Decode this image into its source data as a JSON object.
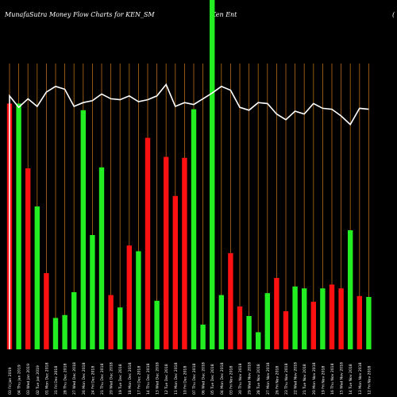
{
  "header": {
    "title_left": "MunafaSutra  Money Flow  Charts for KEN_SM",
    "title_right": "Ken  Ent",
    "title_edge": "("
  },
  "colors": {
    "background": "#000000",
    "grid": "#b86a1a",
    "up": "#22ee22",
    "down": "#ff1111",
    "line": "#ffffff"
  },
  "chart_data": {
    "type": "bar",
    "title": "MunafaSutra  Money Flow  Charts for KEN_SM",
    "categories": [
      "03 Fri Jan 2019",
      "04 Thu Jan 2019",
      "03 Wed Jan 2019",
      "02 Tue Jan 2019",
      "01 Mon Dec 2018",
      "31 Fri Dec 2018",
      "28 Thu Dec 2018",
      "27 Wed Dec 2018",
      "26 Mon Dec 2018",
      "24 Fri Dec 2018",
      "21 Thu Dec 2018",
      "20 Wed Dec 2018",
      "19 Tue Dec 2018",
      "18 Mon Dec 2018",
      "17 Fri Dec 2018",
      "14 Thu Dec 2018",
      "13 Wed Dec 2018",
      "12 Tue Dec 2018",
      "11 Mon Dec 2018",
      "10 Fri Dec 2018",
      "07 Thu Dec 2018",
      "06 Wed Dec 2018",
      "05 Tue Dec 2018",
      "04 Mon Dec 2018",
      "03 Fri Nov 2018",
      "30 Thu Nov 2018",
      "29 Wed Nov 2018",
      "28 Tue Nov 2018",
      "27 Mon Nov 2018",
      "26 Fri Nov 2018",
      "23 Thu Nov 2018",
      "22 Wed Nov 2018",
      "21 Tue Nov 2018",
      "20 Mon Nov 2018",
      "19 Fri Nov 2018",
      "16 Thu Nov 2018",
      "15 Wed Nov 2018",
      "14 Tue Nov 2018",
      "13 Mon Nov 2018",
      "12 Fri Nov 2018"
    ],
    "bar_values": [
      258,
      258,
      190,
      150,
      80,
      33,
      36,
      60,
      251,
      120,
      191,
      57,
      44,
      109,
      103,
      222,
      51,
      202,
      161,
      201,
      252,
      26,
      500,
      57,
      101,
      45,
      35,
      18,
      59,
      75,
      40,
      66,
      64,
      50,
      64,
      68,
      64,
      125,
      56,
      55
    ],
    "bar_colors": [
      "down",
      "up",
      "down",
      "up",
      "down",
      "up",
      "up",
      "up",
      "up",
      "up",
      "up",
      "down",
      "up",
      "down",
      "up",
      "down",
      "up",
      "down",
      "down",
      "down",
      "up",
      "up",
      "up",
      "up",
      "down",
      "down",
      "up",
      "up",
      "up",
      "down",
      "down",
      "up",
      "up",
      "down",
      "up",
      "down",
      "down",
      "up",
      "down",
      "up"
    ],
    "line_values": [
      266,
      254,
      263,
      255,
      270,
      276,
      273,
      255,
      259,
      261,
      268,
      263,
      262,
      266,
      260,
      262,
      266,
      278,
      255,
      259,
      257,
      263,
      269,
      276,
      272,
      254,
      251,
      259,
      258,
      247,
      241,
      250,
      247,
      258,
      253,
      252,
      245,
      236,
      253,
      252
    ],
    "ylim": [
      0,
      300
    ],
    "grid": true,
    "legend": "none"
  },
  "x_labels": [
    "03 Fri Jan 2019",
    "04 Thu Jan 2019",
    "03 Wed Jan 2019",
    "02 Tue Jan 2019",
    "01 Mon Dec 2018",
    "31 Fri Dec 2018",
    "28 Thu Dec 2018",
    "27 Wed Dec 2018",
    "26 Mon Dec 2018",
    "24 Fri Dec 2018",
    "21 Thu Dec 2018",
    "20 Wed Dec 2018",
    "19 Tue Dec 2018",
    "18 Mon Dec 2018",
    "17 Fri Dec 2018",
    "14 Thu Dec 2018",
    "13 Wed Dec 2018",
    "12 Tue Dec 2018",
    "11 Mon Dec 2018",
    "10 Fri Dec 2018",
    "07 Thu Dec 2018",
    "06 Wed Dec 2018",
    "05 Tue Dec 2018",
    "04 Mon Dec 2018",
    "03 Fri Nov 2018",
    "30 Thu Nov 2018",
    "29 Wed Nov 2018",
    "28 Tue Nov 2018",
    "27 Mon Nov 2018",
    "26 Fri Nov 2018",
    "23 Thu Nov 2018",
    "22 Wed Nov 2018",
    "21 Tue Nov 2018",
    "20 Mon Nov 2018",
    "19 Fri Nov 2018",
    "16 Thu Nov 2018",
    "15 Wed Nov 2018",
    "14 Tue Nov 2018",
    "13 Mon Nov 2018",
    "12 Fri Nov 2018"
  ]
}
